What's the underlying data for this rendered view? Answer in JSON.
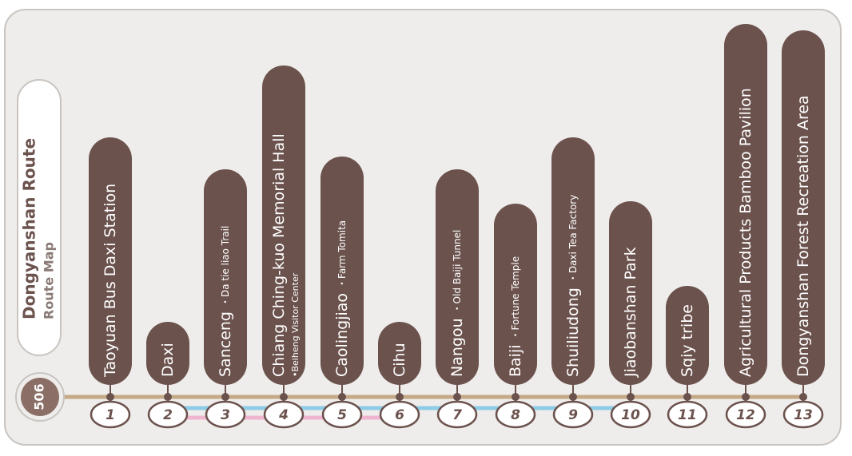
{
  "title": "Dongyanshan Route",
  "subtitle": "Route Map",
  "route_number": "506",
  "stops": [
    {
      "number": "1",
      "name": "Taoyuan Bus Daxi Station"
    },
    {
      "number": "2",
      "name": "Daxi"
    },
    {
      "number": "3",
      "name": "Sanceng",
      "note": "・Da tie liao Trail"
    },
    {
      "number": "4",
      "name": "Chiang Ching-kuo Memorial Hall",
      "note": "•Beiheng Visitor Center"
    },
    {
      "number": "5",
      "name": "Caolingjiao",
      "note": "・Farm Tomita"
    },
    {
      "number": "6",
      "name": "Cihu"
    },
    {
      "number": "7",
      "name": "Nangou",
      "note": "・Old Baiji Tunnel"
    },
    {
      "number": "8",
      "name": "Baiji",
      "note": "・Fortune Temple"
    },
    {
      "number": "9",
      "name": "Shuiliudong",
      "note": "・Daxi Tea Factory"
    },
    {
      "number": "10",
      "name": "Jiaobanshan Park"
    },
    {
      "number": "11",
      "name": "Sqiy tribe"
    },
    {
      "number": "12",
      "name": "Agricultural Products Bamboo Pavilion"
    },
    {
      "number": "13",
      "name": "Dongyanshan Forest Recreation Area"
    }
  ]
}
